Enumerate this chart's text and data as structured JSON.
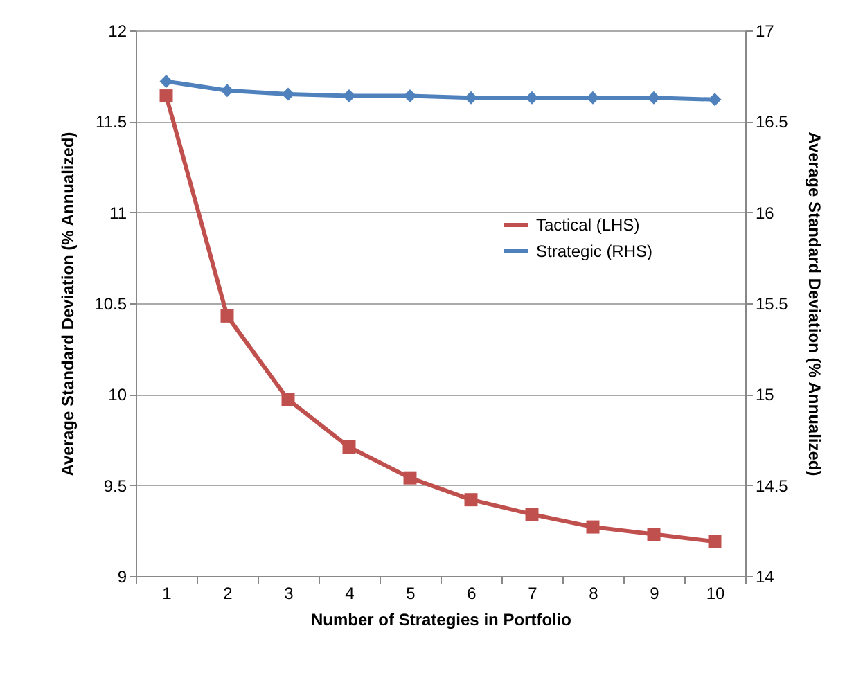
{
  "chart_data": {
    "type": "line",
    "xlabel": "Number of Strategies in Portfolio",
    "ylabel": "Average Standard  Deviation (% Annualized)",
    "y2label": "Average Standard  Deviation (% Annualized)",
    "categories": [
      "1",
      "2",
      "3",
      "4",
      "5",
      "6",
      "7",
      "8",
      "9",
      "10"
    ],
    "series": [
      {
        "name": "Tactical (LHS)",
        "color": "#c0504d",
        "marker": "square",
        "values": [
          11.64,
          10.43,
          9.97,
          9.71,
          9.54,
          9.42,
          9.34,
          9.27,
          9.23,
          9.19
        ]
      },
      {
        "name": "Strategic (RHS)",
        "color": "#4f81bd",
        "marker": "diamond",
        "axis": "y2",
        "values": [
          16.72,
          16.67,
          16.65,
          16.64,
          16.64,
          16.63,
          16.63,
          16.63,
          16.63,
          16.62
        ]
      }
    ],
    "ylim": [
      9,
      12
    ],
    "yticks": [
      9,
      9.5,
      10,
      10.5,
      11,
      11.5,
      12
    ],
    "y2lim": [
      14,
      17
    ],
    "y2ticks": [
      14,
      14.5,
      15,
      15.5,
      16,
      16.5,
      17
    ],
    "grid": "y",
    "legend": "right"
  }
}
